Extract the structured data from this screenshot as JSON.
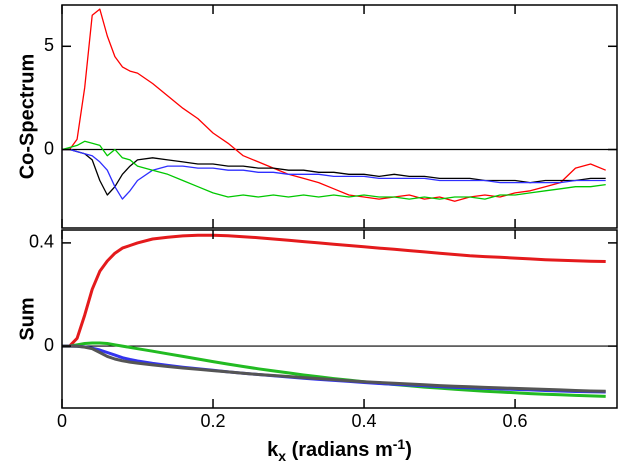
{
  "chart_data": [
    {
      "type": "line",
      "ylabel": "Co-Spectrum",
      "x": [
        0,
        0.01,
        0.02,
        0.03,
        0.04,
        0.05,
        0.06,
        0.07,
        0.08,
        0.09,
        0.1,
        0.12,
        0.14,
        0.16,
        0.18,
        0.2,
        0.22,
        0.24,
        0.26,
        0.28,
        0.3,
        0.32,
        0.34,
        0.36,
        0.38,
        0.4,
        0.42,
        0.44,
        0.46,
        0.48,
        0.5,
        0.52,
        0.54,
        0.56,
        0.58,
        0.6,
        0.62,
        0.64,
        0.66,
        0.68,
        0.7,
        0.72
      ],
      "series": [
        {
          "color": "#ff0000",
          "values": [
            0,
            0,
            0.5,
            3,
            6.5,
            6.8,
            5.5,
            4.5,
            4,
            3.8,
            3.7,
            3.2,
            2.6,
            2,
            1.5,
            0.8,
            0.3,
            -0.3,
            -0.6,
            -0.9,
            -1.2,
            -1.4,
            -1.6,
            -1.9,
            -2.2,
            -2.3,
            -2.4,
            -2.3,
            -2.2,
            -2.4,
            -2.3,
            -2.5,
            -2.3,
            -2.2,
            -2.3,
            -2.1,
            -2,
            -1.8,
            -1.6,
            -0.9,
            -0.7,
            -1
          ]
        },
        {
          "color": "#000000",
          "values": [
            0,
            0,
            -0.1,
            -0.2,
            -0.5,
            -1.5,
            -2.2,
            -1.8,
            -1.2,
            -0.8,
            -0.5,
            -0.4,
            -0.5,
            -0.6,
            -0.7,
            -0.7,
            -0.8,
            -0.8,
            -0.9,
            -0.9,
            -1,
            -1,
            -1.1,
            -1.1,
            -1.2,
            -1.2,
            -1.3,
            -1.2,
            -1.3,
            -1.3,
            -1.4,
            -1.4,
            -1.4,
            -1.5,
            -1.5,
            -1.5,
            -1.6,
            -1.5,
            -1.5,
            -1.5,
            -1.4,
            -1.4
          ]
        },
        {
          "color": "#2f2fff",
          "values": [
            0,
            0,
            -0.1,
            -0.2,
            -0.3,
            -0.6,
            -1,
            -1.8,
            -2.4,
            -2,
            -1.5,
            -1,
            -0.8,
            -0.8,
            -0.9,
            -0.9,
            -1,
            -1,
            -1.1,
            -1.1,
            -1.2,
            -1.2,
            -1.2,
            -1.3,
            -1.3,
            -1.3,
            -1.4,
            -1.4,
            -1.4,
            -1.4,
            -1.5,
            -1.5,
            -1.5,
            -1.5,
            -1.6,
            -1.6,
            -1.6,
            -1.6,
            -1.6,
            -1.5,
            -1.5,
            -1.5
          ]
        },
        {
          "color": "#00c800",
          "values": [
            0,
            0.1,
            0.2,
            0.4,
            0.3,
            0.2,
            -0.3,
            0,
            -0.4,
            -0.5,
            -0.8,
            -1,
            -1.2,
            -1.5,
            -1.8,
            -2.1,
            -2.3,
            -2.2,
            -2.3,
            -2.2,
            -2.3,
            -2.2,
            -2.3,
            -2.2,
            -2.3,
            -2.2,
            -2.3,
            -2.3,
            -2.4,
            -2.3,
            -2.4,
            -2.3,
            -2.3,
            -2.4,
            -2.2,
            -2.2,
            -2.1,
            -2,
            -1.9,
            -1.8,
            -1.8,
            -1.7
          ]
        }
      ],
      "xlim": [
        0,
        0.735
      ],
      "xticks": [
        0,
        0.2,
        0.4,
        0.6
      ],
      "ylim": [
        -3.8,
        7
      ],
      "yticks": [
        0,
        5
      ],
      "zero_line": true
    },
    {
      "type": "line",
      "ylabel": "Sum",
      "xlabel": [
        "k",
        "x",
        " (radians m",
        "-1",
        ")"
      ],
      "x": [
        0,
        0.01,
        0.02,
        0.03,
        0.04,
        0.05,
        0.06,
        0.07,
        0.08,
        0.09,
        0.1,
        0.12,
        0.14,
        0.16,
        0.18,
        0.2,
        0.22,
        0.24,
        0.26,
        0.28,
        0.3,
        0.32,
        0.34,
        0.36,
        0.38,
        0.4,
        0.42,
        0.44,
        0.46,
        0.48,
        0.5,
        0.52,
        0.54,
        0.56,
        0.58,
        0.6,
        0.62,
        0.64,
        0.66,
        0.68,
        0.7,
        0.72
      ],
      "series": [
        {
          "color": "#e41a1c",
          "values": [
            0,
            0,
            0.03,
            0.12,
            0.22,
            0.29,
            0.33,
            0.36,
            0.38,
            0.39,
            0.4,
            0.415,
            0.422,
            0.427,
            0.43,
            0.43,
            0.428,
            0.424,
            0.42,
            0.415,
            0.41,
            0.405,
            0.4,
            0.395,
            0.39,
            0.385,
            0.38,
            0.375,
            0.37,
            0.365,
            0.36,
            0.355,
            0.35,
            0.347,
            0.344,
            0.341,
            0.338,
            0.335,
            0.333,
            0.331,
            0.329,
            0.328
          ]
        },
        {
          "color": "#22bb22",
          "values": [
            0,
            0,
            0.005,
            0.01,
            0.012,
            0.012,
            0.01,
            0.005,
            0,
            -0.005,
            -0.01,
            -0.02,
            -0.03,
            -0.04,
            -0.05,
            -0.06,
            -0.07,
            -0.079,
            -0.088,
            -0.096,
            -0.104,
            -0.112,
            -0.119,
            -0.126,
            -0.132,
            -0.138,
            -0.144,
            -0.149,
            -0.154,
            -0.159,
            -0.163,
            -0.167,
            -0.171,
            -0.175,
            -0.178,
            -0.181,
            -0.184,
            -0.187,
            -0.189,
            -0.191,
            -0.193,
            -0.195
          ]
        },
        {
          "color": "#3333ee",
          "values": [
            0,
            0,
            -0.001,
            -0.003,
            -0.008,
            -0.015,
            -0.025,
            -0.035,
            -0.045,
            -0.052,
            -0.058,
            -0.067,
            -0.075,
            -0.082,
            -0.088,
            -0.094,
            -0.1,
            -0.105,
            -0.11,
            -0.115,
            -0.12,
            -0.125,
            -0.129,
            -0.133,
            -0.137,
            -0.141,
            -0.145,
            -0.148,
            -0.151,
            -0.154,
            -0.157,
            -0.16,
            -0.162,
            -0.164,
            -0.166,
            -0.168,
            -0.17,
            -0.172,
            -0.174,
            -0.176,
            -0.177,
            -0.178
          ]
        },
        {
          "color": "#555555",
          "values": [
            0,
            0,
            -0.001,
            -0.004,
            -0.01,
            -0.025,
            -0.04,
            -0.05,
            -0.057,
            -0.062,
            -0.066,
            -0.073,
            -0.079,
            -0.085,
            -0.09,
            -0.095,
            -0.1,
            -0.105,
            -0.11,
            -0.114,
            -0.118,
            -0.122,
            -0.126,
            -0.13,
            -0.134,
            -0.138,
            -0.141,
            -0.144,
            -0.147,
            -0.15,
            -0.153,
            -0.156,
            -0.158,
            -0.16,
            -0.162,
            -0.164,
            -0.166,
            -0.168,
            -0.17,
            -0.172,
            -0.174,
            -0.175
          ]
        }
      ],
      "xlim": [
        0,
        0.735
      ],
      "xticks": [
        0,
        0.2,
        0.4,
        0.6
      ],
      "ylim": [
        -0.24,
        0.45
      ],
      "yticks": [
        0,
        0.4
      ],
      "zero_line": true
    }
  ]
}
